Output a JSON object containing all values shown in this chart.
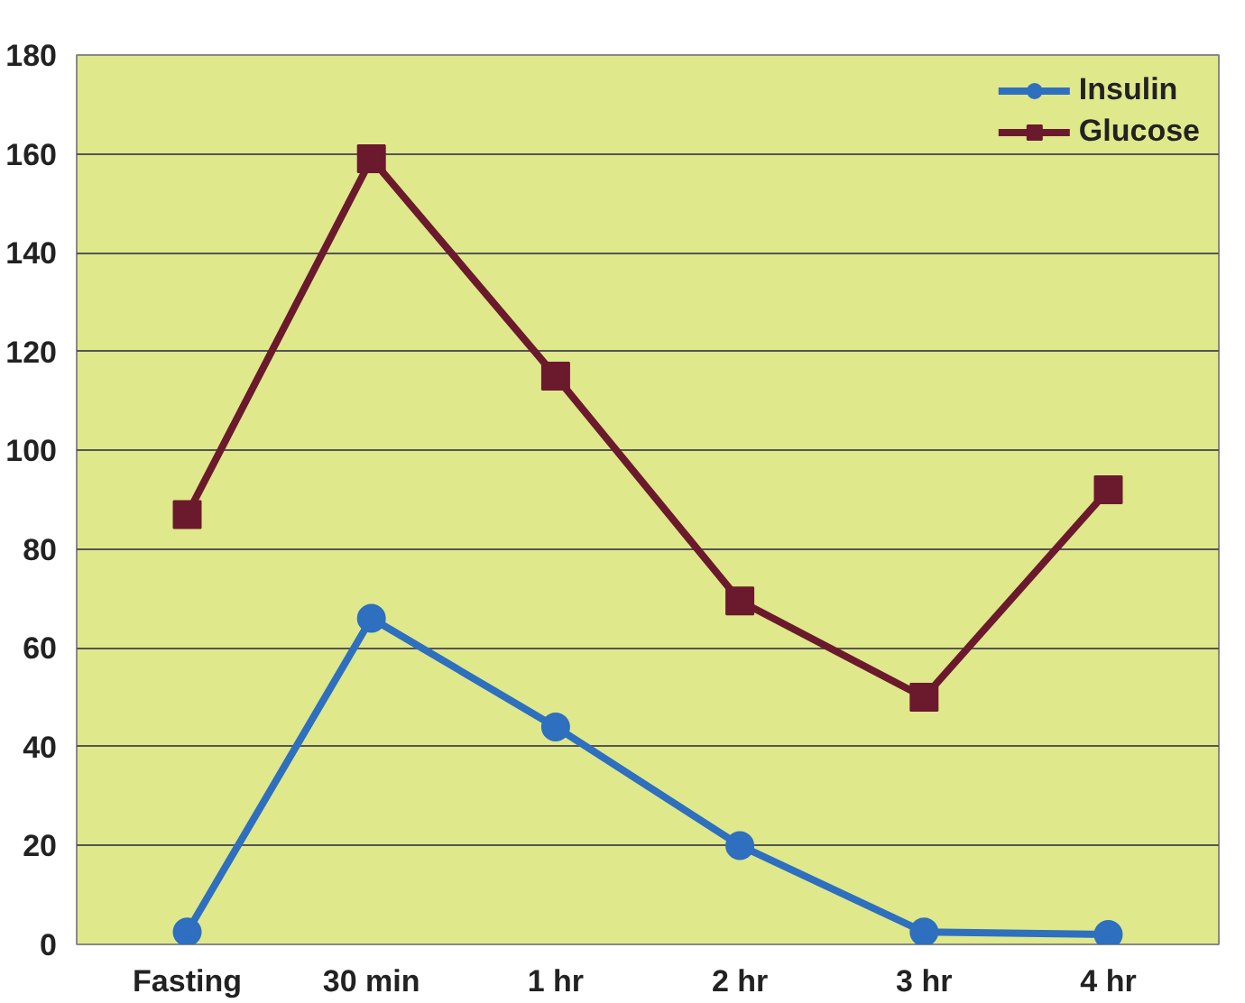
{
  "chart_data": {
    "type": "line",
    "categories": [
      "Fasting",
      "30 min",
      "1 hr",
      "2 hr",
      "3 hr",
      "4 hr"
    ],
    "series": [
      {
        "name": "Insulin",
        "color": "#2e6fbf",
        "marker": "circle",
        "values": [
          2.5,
          66,
          44,
          20,
          2.5,
          2
        ]
      },
      {
        "name": "Glucose",
        "color": "#6b1a2e",
        "marker": "square",
        "values": [
          87,
          159,
          115,
          69.5,
          50,
          92
        ]
      }
    ],
    "ylim": [
      0,
      180
    ],
    "yticks": [
      0,
      20,
      40,
      60,
      80,
      100,
      120,
      140,
      160,
      180
    ],
    "grid": "y",
    "legend": "top right"
  }
}
